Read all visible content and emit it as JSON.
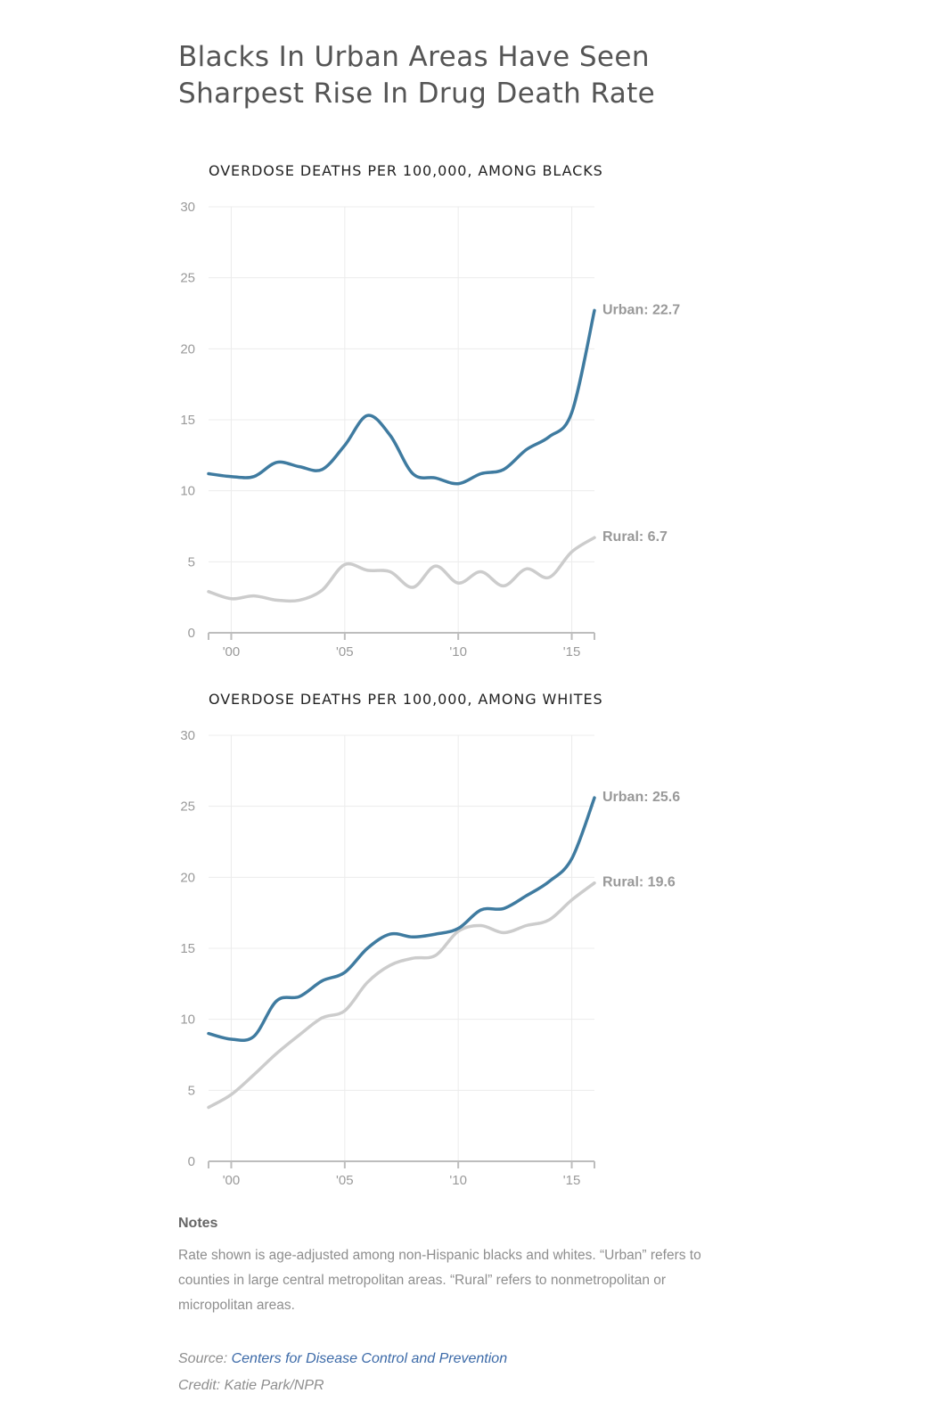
{
  "title": "Blacks In Urban Areas Have Seen Sharpest Rise In Drug Death Rate",
  "colors": {
    "urban": "#3f7ba0",
    "rural": "#cccccc"
  },
  "chart_data": [
    {
      "type": "line",
      "title": "OVERDOSE DEATHS PER 100,000, AMONG BLACKS",
      "x": [
        1999,
        2000,
        2001,
        2002,
        2003,
        2004,
        2005,
        2006,
        2007,
        2008,
        2009,
        2010,
        2011,
        2012,
        2013,
        2014,
        2015,
        2016
      ],
      "x_tick_values": [
        2000,
        2005,
        2010,
        2015
      ],
      "x_tick_labels": [
        "'00",
        "'05",
        "'10",
        "'15"
      ],
      "xlim": [
        1999,
        2016
      ],
      "ylim": [
        0,
        30
      ],
      "y_ticks": [
        0,
        5,
        10,
        15,
        20,
        25,
        30
      ],
      "grid": true,
      "series": [
        {
          "name": "Urban",
          "color": "#3f7ba0",
          "end_label": "Urban: 22.7",
          "values": [
            11.2,
            11.0,
            11.0,
            12.0,
            11.7,
            11.5,
            13.2,
            15.3,
            13.9,
            11.2,
            10.9,
            10.5,
            11.2,
            11.5,
            12.9,
            13.8,
            15.5,
            22.7
          ]
        },
        {
          "name": "Rural",
          "color": "#cccccc",
          "end_label": "Rural: 6.7",
          "values": [
            2.9,
            2.4,
            2.6,
            2.3,
            2.3,
            3.0,
            4.8,
            4.4,
            4.3,
            3.2,
            4.7,
            3.5,
            4.3,
            3.3,
            4.5,
            3.9,
            5.7,
            6.7
          ]
        }
      ]
    },
    {
      "type": "line",
      "title": "OVERDOSE DEATHS PER 100,000, AMONG WHITES",
      "x": [
        1999,
        2000,
        2001,
        2002,
        2003,
        2004,
        2005,
        2006,
        2007,
        2008,
        2009,
        2010,
        2011,
        2012,
        2013,
        2014,
        2015,
        2016
      ],
      "x_tick_values": [
        2000,
        2005,
        2010,
        2015
      ],
      "x_tick_labels": [
        "'00",
        "'05",
        "'10",
        "'15"
      ],
      "xlim": [
        1999,
        2016
      ],
      "ylim": [
        0,
        30
      ],
      "y_ticks": [
        0,
        5,
        10,
        15,
        20,
        25,
        30
      ],
      "grid": true,
      "series": [
        {
          "name": "Urban",
          "color": "#3f7ba0",
          "end_label": "Urban: 25.6",
          "values": [
            9.0,
            8.6,
            8.8,
            11.3,
            11.6,
            12.7,
            13.3,
            15.0,
            16.0,
            15.8,
            16.0,
            16.4,
            17.7,
            17.8,
            18.7,
            19.7,
            21.3,
            25.6
          ]
        },
        {
          "name": "Rural",
          "color": "#cccccc",
          "end_label": "Rural: 19.6",
          "values": [
            3.8,
            4.7,
            6.1,
            7.6,
            8.9,
            10.1,
            10.6,
            12.6,
            13.8,
            14.3,
            14.5,
            16.2,
            16.6,
            16.1,
            16.6,
            17.0,
            18.4,
            19.6
          ]
        }
      ]
    }
  ],
  "notes": {
    "heading": "Notes",
    "body": "Rate shown is age-adjusted among non-Hispanic blacks and whites. “Urban” refers to counties in large central metropolitan areas. “Rural” refers to nonmetropolitan or micropolitan areas."
  },
  "source": {
    "prefix": "Source: ",
    "link_text": "Centers for Disease Control and Prevention"
  },
  "credit": "Credit: Katie Park/NPR"
}
